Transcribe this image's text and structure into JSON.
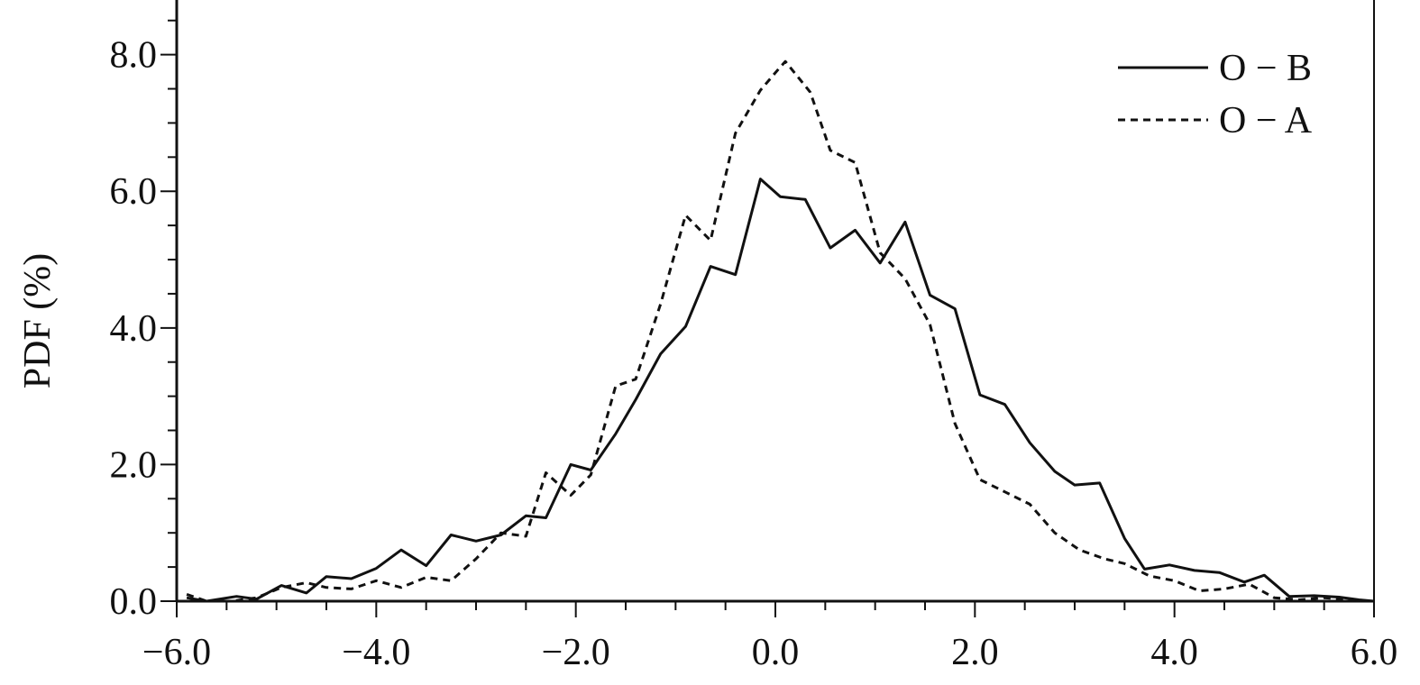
{
  "chart_data": {
    "type": "line",
    "title": "",
    "xlabel": "",
    "ylabel": "PDF (%)",
    "xlim": [
      -6.0,
      6.0
    ],
    "ylim": [
      0.0,
      8.8
    ],
    "x_ticks": [
      -6.0,
      -4.0,
      -2.0,
      0.0,
      2.0,
      4.0,
      6.0
    ],
    "x_tick_labels": [
      "−6.0",
      "−4.0",
      "−2.0",
      "0.0",
      "2.0",
      "4.0",
      "6.0"
    ],
    "y_ticks": [
      0.0,
      2.0,
      4.0,
      6.0,
      8.0
    ],
    "y_tick_labels": [
      "0.0",
      "2.0",
      "4.0",
      "6.0",
      "8.0"
    ],
    "grid": false,
    "legend_position": "top-right",
    "series": [
      {
        "name": "O − B",
        "style": "solid",
        "color": "#111111",
        "x": [
          -5.9,
          -5.7,
          -5.4,
          -5.2,
          -4.95,
          -4.7,
          -4.5,
          -4.25,
          -4.0,
          -3.75,
          -3.5,
          -3.25,
          -3.0,
          -2.75,
          -2.5,
          -2.3,
          -2.05,
          -1.85,
          -1.6,
          -1.4,
          -1.15,
          -0.9,
          -0.65,
          -0.4,
          -0.15,
          0.05,
          0.3,
          0.55,
          0.8,
          1.05,
          1.3,
          1.55,
          1.8,
          2.05,
          2.3,
          2.55,
          2.8,
          3.0,
          3.25,
          3.5,
          3.7,
          3.95,
          4.2,
          4.45,
          4.7,
          4.9,
          5.15,
          5.4,
          5.65,
          5.85,
          6.0
        ],
        "y": [
          0.05,
          0.0,
          0.07,
          0.03,
          0.23,
          0.12,
          0.36,
          0.33,
          0.48,
          0.75,
          0.52,
          0.97,
          0.88,
          0.97,
          1.25,
          1.22,
          2.0,
          1.92,
          2.45,
          2.95,
          3.62,
          4.02,
          4.9,
          4.78,
          6.18,
          5.92,
          5.88,
          5.17,
          5.43,
          4.95,
          5.55,
          4.48,
          4.28,
          3.02,
          2.88,
          2.32,
          1.9,
          1.7,
          1.73,
          0.92,
          0.47,
          0.53,
          0.45,
          0.42,
          0.28,
          0.38,
          0.07,
          0.08,
          0.06,
          0.02,
          0.0
        ]
      },
      {
        "name": "O − A",
        "style": "dashed",
        "color": "#111111",
        "x": [
          -5.9,
          -5.7,
          -5.45,
          -5.2,
          -4.95,
          -4.7,
          -4.5,
          -4.25,
          -4.0,
          -3.75,
          -3.5,
          -3.25,
          -3.0,
          -2.75,
          -2.5,
          -2.3,
          -2.05,
          -1.85,
          -1.6,
          -1.4,
          -1.15,
          -0.9,
          -0.65,
          -0.4,
          -0.15,
          0.05,
          0.1,
          0.35,
          0.55,
          0.8,
          1.05,
          1.3,
          1.55,
          1.8,
          2.05,
          2.3,
          2.55,
          2.8,
          3.05,
          3.3,
          3.5,
          3.75,
          4.0,
          4.25,
          4.5,
          4.75,
          5.0,
          5.25,
          5.5,
          5.75,
          6.0
        ],
        "y": [
          0.1,
          0.0,
          0.0,
          0.05,
          0.2,
          0.27,
          0.2,
          0.18,
          0.3,
          0.2,
          0.35,
          0.3,
          0.62,
          1.0,
          0.95,
          1.88,
          1.55,
          1.85,
          3.15,
          3.25,
          4.35,
          5.65,
          5.28,
          6.85,
          7.48,
          7.82,
          7.9,
          7.45,
          6.6,
          6.42,
          5.1,
          4.72,
          4.05,
          2.6,
          1.78,
          1.6,
          1.42,
          1.0,
          0.75,
          0.62,
          0.55,
          0.37,
          0.3,
          0.15,
          0.18,
          0.25,
          0.05,
          0.02,
          0.05,
          0.02,
          0.0
        ]
      }
    ]
  }
}
